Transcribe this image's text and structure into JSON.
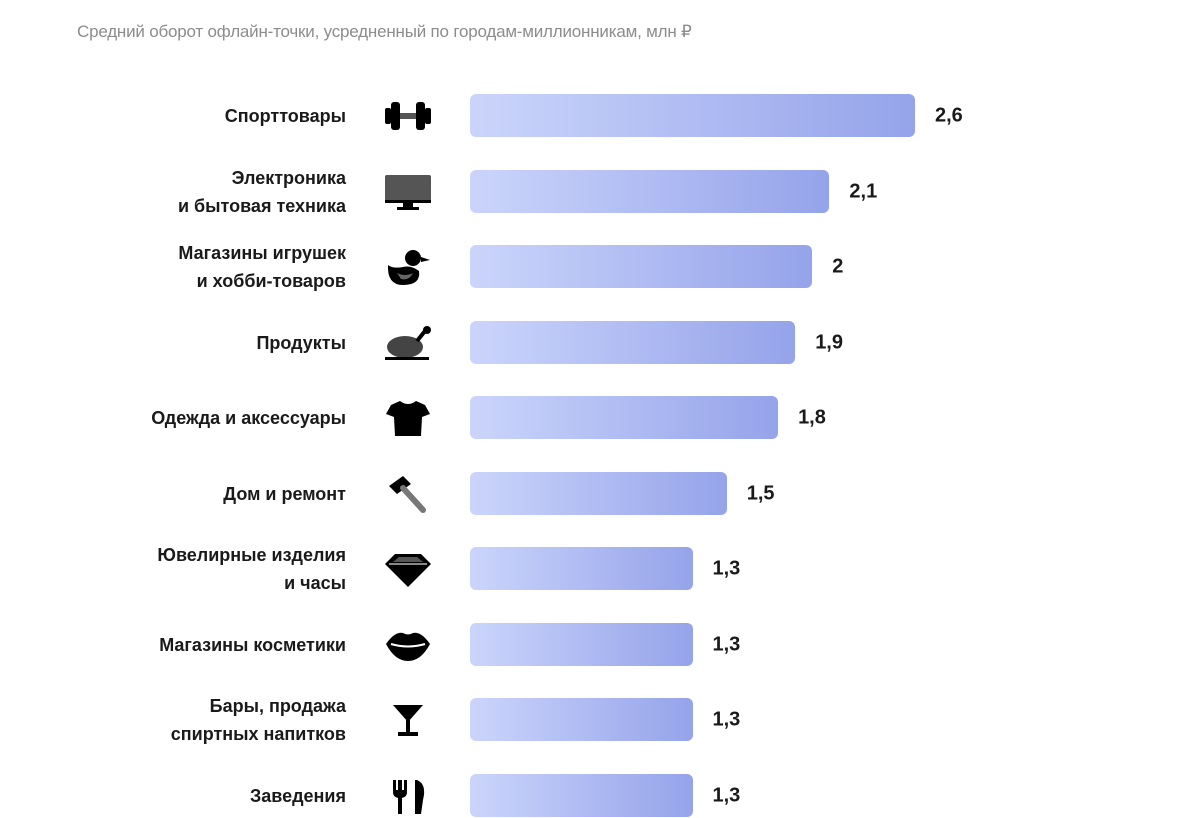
{
  "chart_data": {
    "type": "bar",
    "orientation": "horizontal",
    "title": "Средний оборот офлайн-точки, усредненный по городам-миллионникам, млн ₽",
    "xlabel": "",
    "ylabel": "",
    "xlim": [
      0,
      2.6
    ],
    "grid": false,
    "colors": {
      "bar_start": "#cbd5fb",
      "bar_end": "#95a3ea",
      "text": "#1a1a1a",
      "subtitle": "#8c8c8c"
    },
    "categories": [
      {
        "label": [
          "Спорттовары"
        ],
        "icon": "dumbbell-icon",
        "value": 2.6,
        "value_label": "2,6"
      },
      {
        "label": [
          "Электроника",
          "и бытовая техника"
        ],
        "icon": "monitor-icon",
        "value": 2.1,
        "value_label": "2,1"
      },
      {
        "label": [
          "Магазины игрушек",
          "и хобби-товаров"
        ],
        "icon": "rubber-duck-icon",
        "value": 2.0,
        "value_label": "2"
      },
      {
        "label": [
          "Продукты"
        ],
        "icon": "roast-chicken-icon",
        "value": 1.9,
        "value_label": "1,9"
      },
      {
        "label": [
          "Одежда и аксессуары"
        ],
        "icon": "tshirt-icon",
        "value": 1.8,
        "value_label": "1,8"
      },
      {
        "label": [
          "Дом и ремонт"
        ],
        "icon": "hammer-icon",
        "value": 1.5,
        "value_label": "1,5"
      },
      {
        "label": [
          "Ювелирные изделия",
          "и часы"
        ],
        "icon": "diamond-icon",
        "value": 1.3,
        "value_label": "1,3"
      },
      {
        "label": [
          "Магазины косметики"
        ],
        "icon": "lips-icon",
        "value": 1.3,
        "value_label": "1,3"
      },
      {
        "label": [
          "Бары, продажа",
          "спиртных напитков"
        ],
        "icon": "cocktail-glass-icon",
        "value": 1.3,
        "value_label": "1,3"
      },
      {
        "label": [
          "Заведения"
        ],
        "icon": "fork-knife-icon",
        "value": 1.3,
        "value_label": "1,3"
      }
    ]
  }
}
